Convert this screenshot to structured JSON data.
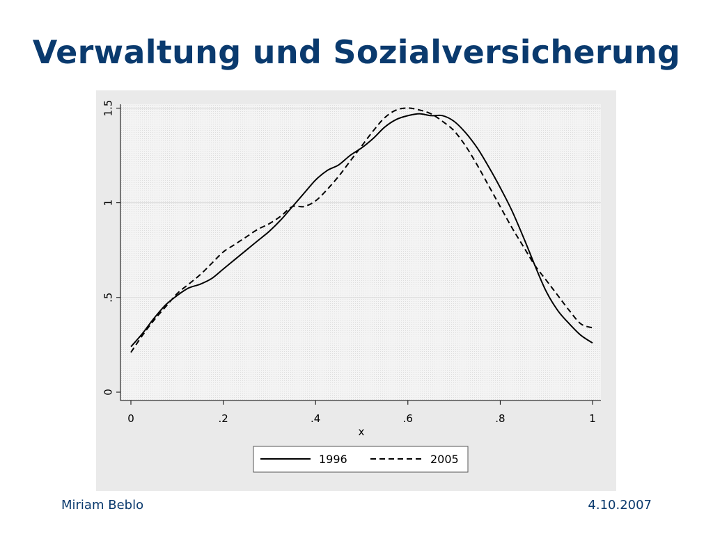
{
  "slide": {
    "title": "Verwaltung und Sozialversicherung",
    "author": "Miriam Beblo",
    "date": "4.10.2007",
    "title_color": "#0a3a6e"
  },
  "chart_data": {
    "type": "line",
    "title": "",
    "xlabel": "x",
    "ylabel": "",
    "xlim": [
      0,
      1
    ],
    "ylim": [
      0,
      1.52
    ],
    "x_ticks": [
      0,
      0.2,
      0.4,
      0.6,
      0.8,
      1
    ],
    "x_tick_labels": [
      "0",
      ".2",
      ".4",
      ".6",
      ".8",
      "1"
    ],
    "y_ticks": [
      0,
      0.5,
      1,
      1.5
    ],
    "y_tick_labels": [
      "0",
      ".5",
      "1",
      "1.5"
    ],
    "grid": true,
    "legend_placement": "bottom",
    "series": [
      {
        "name": "1996",
        "style": "solid",
        "color": "#000000",
        "x": [
          0.0,
          0.025,
          0.05,
          0.075,
          0.1,
          0.125,
          0.15,
          0.175,
          0.2,
          0.225,
          0.25,
          0.275,
          0.3,
          0.325,
          0.35,
          0.375,
          0.4,
          0.425,
          0.45,
          0.475,
          0.5,
          0.525,
          0.55,
          0.575,
          0.6,
          0.625,
          0.65,
          0.675,
          0.7,
          0.725,
          0.75,
          0.775,
          0.8,
          0.825,
          0.85,
          0.875,
          0.9,
          0.925,
          0.95,
          0.975,
          1.0
        ],
        "y": [
          0.24,
          0.31,
          0.39,
          0.46,
          0.51,
          0.55,
          0.57,
          0.6,
          0.65,
          0.7,
          0.75,
          0.8,
          0.85,
          0.91,
          0.98,
          1.05,
          1.12,
          1.17,
          1.2,
          1.25,
          1.29,
          1.34,
          1.4,
          1.44,
          1.46,
          1.47,
          1.46,
          1.46,
          1.43,
          1.37,
          1.29,
          1.19,
          1.08,
          0.96,
          0.82,
          0.67,
          0.53,
          0.43,
          0.36,
          0.3,
          0.26
        ]
      },
      {
        "name": "2005",
        "style": "dashed",
        "color": "#000000",
        "x": [
          0.0,
          0.025,
          0.05,
          0.075,
          0.1,
          0.125,
          0.15,
          0.175,
          0.2,
          0.225,
          0.25,
          0.275,
          0.3,
          0.325,
          0.35,
          0.375,
          0.4,
          0.425,
          0.45,
          0.475,
          0.5,
          0.525,
          0.55,
          0.575,
          0.6,
          0.625,
          0.65,
          0.675,
          0.7,
          0.725,
          0.75,
          0.775,
          0.8,
          0.825,
          0.85,
          0.875,
          0.9,
          0.925,
          0.95,
          0.975,
          1.0
        ],
        "y": [
          0.21,
          0.3,
          0.38,
          0.45,
          0.52,
          0.57,
          0.62,
          0.68,
          0.74,
          0.78,
          0.82,
          0.86,
          0.89,
          0.93,
          0.98,
          0.98,
          1.01,
          1.07,
          1.14,
          1.22,
          1.3,
          1.38,
          1.45,
          1.49,
          1.5,
          1.49,
          1.47,
          1.43,
          1.38,
          1.3,
          1.2,
          1.09,
          0.98,
          0.87,
          0.77,
          0.67,
          0.59,
          0.51,
          0.43,
          0.36,
          0.34
        ]
      }
    ]
  }
}
